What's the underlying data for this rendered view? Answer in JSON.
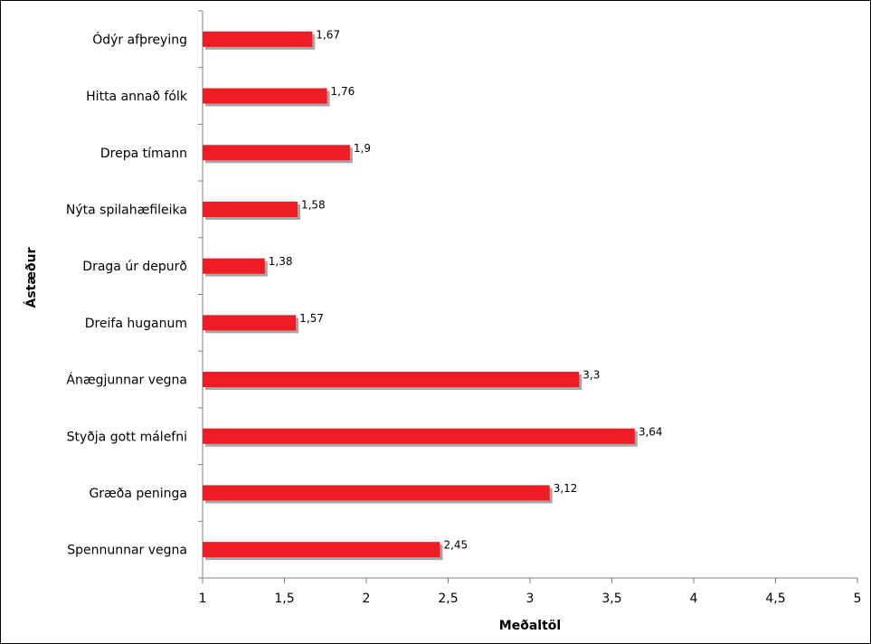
{
  "chart_data": {
    "type": "bar",
    "orientation": "horizontal",
    "categories": [
      "Ódýr afþreying",
      "Hitta annað fólk",
      "Drepa tímann",
      "Nýta spilahæfileika",
      "Draga úr depurð",
      "Dreifa huganum",
      "Ánægjunnar vegna",
      "Styðja gott málefni",
      "Græða peninga",
      "Spennunnar vegna"
    ],
    "values": [
      1.67,
      1.76,
      1.9,
      1.58,
      1.38,
      1.57,
      3.3,
      3.64,
      3.12,
      2.45
    ],
    "data_labels": [
      "1,67",
      "1,76",
      "1,9",
      "1,58",
      "1,38",
      "1,57",
      "3,3",
      "3,64",
      "3,12",
      "2,45"
    ],
    "title": "",
    "xlabel": "Meðaltöl",
    "ylabel": "Ástæður",
    "xlim": [
      1,
      5
    ],
    "x_ticks": [
      1,
      1.5,
      2,
      2.5,
      3,
      3.5,
      4,
      4.5,
      5
    ],
    "x_tick_labels": [
      "1",
      "1,5",
      "2",
      "2,5",
      "3",
      "3,5",
      "4",
      "4,5",
      "5"
    ],
    "grid": false,
    "legend": "none",
    "colors": {
      "bar": "#ee1c25",
      "bar_shadow": "#a6a6a6",
      "axis": "#808080"
    }
  }
}
